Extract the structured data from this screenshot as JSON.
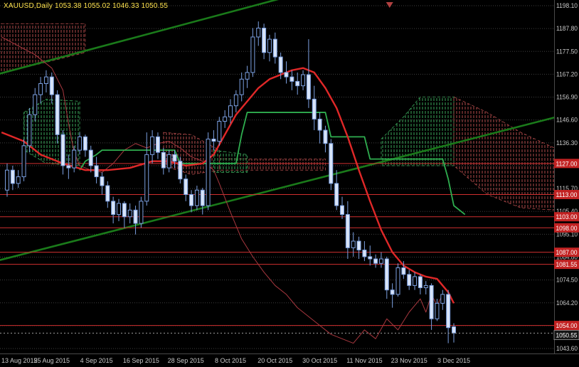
{
  "header": {
    "title": "XAUUSD,Daily 1053.38 1055.02 1046.33 1050.55"
  },
  "chart_data": {
    "type": "candlestick",
    "symbol": "XAUUSD",
    "timeframe": "Daily",
    "ohlc_readout": {
      "open": "1053.38",
      "high": "1055.02",
      "low": "1046.33",
      "close": "1050.55"
    },
    "y_axis": [
      1198.1,
      1187.8,
      1177.5,
      1167.2,
      1156.9,
      1146.6,
      1136.3,
      1126.0,
      1115.7,
      1105.4,
      1095.1,
      1084.8,
      1074.5,
      1064.2,
      1053.9,
      1043.6
    ],
    "x_axis": [
      {
        "label": "13 Aug 2015",
        "bar": 0
      },
      {
        "label": "25 Aug 2015",
        "bar": 8
      },
      {
        "label": "4 Sep 2015",
        "bar": 16
      },
      {
        "label": "16 Sep 2015",
        "bar": 24
      },
      {
        "label": "28 Sep 2015",
        "bar": 32
      },
      {
        "label": "8 Oct 2015",
        "bar": 40
      },
      {
        "label": "20 Oct 2015",
        "bar": 48
      },
      {
        "label": "30 Oct 2015",
        "bar": 56
      },
      {
        "label": "11 Nov 2015",
        "bar": 64
      },
      {
        "label": "23 Nov 2015",
        "bar": 72
      },
      {
        "label": "3 Dec 2015",
        "bar": 80
      }
    ],
    "candles": [
      [
        1115,
        1127,
        1112,
        1124
      ],
      [
        1124,
        1126,
        1115,
        1118
      ],
      [
        1118,
        1124,
        1116,
        1121
      ],
      [
        1121,
        1138,
        1119,
        1135
      ],
      [
        1135,
        1152,
        1132,
        1149
      ],
      [
        1149,
        1161,
        1146,
        1158
      ],
      [
        1158,
        1166,
        1154,
        1163
      ],
      [
        1163,
        1169,
        1159,
        1166
      ],
      [
        1166,
        1168,
        1154,
        1158
      ],
      [
        1158,
        1160,
        1136,
        1140
      ],
      [
        1140,
        1142,
        1122,
        1126
      ],
      [
        1126,
        1131,
        1120,
        1125
      ],
      [
        1125,
        1135,
        1123,
        1133
      ],
      [
        1133,
        1141,
        1131,
        1139
      ],
      [
        1139,
        1140,
        1130,
        1133
      ],
      [
        1133,
        1135,
        1123,
        1126
      ],
      [
        1126,
        1130,
        1118,
        1121
      ],
      [
        1121,
        1123,
        1113,
        1117
      ],
      [
        1117,
        1119,
        1107,
        1110
      ],
      [
        1110,
        1112,
        1100,
        1104
      ],
      [
        1104,
        1111,
        1101,
        1109
      ],
      [
        1109,
        1110,
        1098,
        1103
      ],
      [
        1103,
        1109,
        1100,
        1106
      ],
      [
        1106,
        1108,
        1095,
        1100
      ],
      [
        1100,
        1112,
        1098,
        1110
      ],
      [
        1110,
        1141,
        1108,
        1131
      ],
      [
        1131,
        1142,
        1127,
        1139
      ],
      [
        1139,
        1141,
        1129,
        1132
      ],
      [
        1132,
        1134,
        1122,
        1125
      ],
      [
        1125,
        1133,
        1123,
        1131
      ],
      [
        1131,
        1133,
        1125,
        1128
      ],
      [
        1128,
        1130,
        1118,
        1120
      ],
      [
        1120,
        1122,
        1110,
        1113
      ],
      [
        1113,
        1115,
        1105,
        1108
      ],
      [
        1108,
        1117,
        1106,
        1115
      ],
      [
        1115,
        1116,
        1104,
        1108
      ],
      [
        1108,
        1141,
        1106,
        1138
      ],
      [
        1138,
        1142,
        1133,
        1137
      ],
      [
        1137,
        1148,
        1135,
        1146
      ],
      [
        1146,
        1151,
        1143,
        1148
      ],
      [
        1148,
        1156,
        1145,
        1153
      ],
      [
        1153,
        1160,
        1150,
        1158
      ],
      [
        1158,
        1168,
        1155,
        1165
      ],
      [
        1165,
        1171,
        1161,
        1168
      ],
      [
        1168,
        1188,
        1166,
        1184
      ],
      [
        1184,
        1191,
        1180,
        1188
      ],
      [
        1188,
        1190,
        1174,
        1177
      ],
      [
        1177,
        1185,
        1173,
        1183
      ],
      [
        1183,
        1186,
        1172,
        1175
      ],
      [
        1175,
        1177,
        1165,
        1168
      ],
      [
        1168,
        1173,
        1163,
        1166
      ],
      [
        1166,
        1169,
        1160,
        1164
      ],
      [
        1164,
        1168,
        1158,
        1162
      ],
      [
        1162,
        1169,
        1160,
        1167
      ],
      [
        1167,
        1183,
        1152,
        1156
      ],
      [
        1156,
        1162,
        1142,
        1147
      ],
      [
        1147,
        1150,
        1136,
        1142
      ],
      [
        1142,
        1144,
        1132,
        1136
      ],
      [
        1136,
        1138,
        1115,
        1118
      ],
      [
        1118,
        1124,
        1106,
        1108
      ],
      [
        1108,
        1112,
        1102,
        1104
      ],
      [
        1104,
        1110,
        1084,
        1089
      ],
      [
        1089,
        1096,
        1085,
        1092
      ],
      [
        1092,
        1094,
        1084,
        1088
      ],
      [
        1088,
        1092,
        1083,
        1085
      ],
      [
        1085,
        1090,
        1081,
        1084
      ],
      [
        1084,
        1086,
        1080,
        1082
      ],
      [
        1082,
        1087,
        1080,
        1084
      ],
      [
        1084,
        1085,
        1066,
        1070
      ],
      [
        1070,
        1073,
        1062,
        1068
      ],
      [
        1068,
        1082,
        1067,
        1080
      ],
      [
        1080,
        1083,
        1075,
        1077
      ],
      [
        1077,
        1079,
        1070,
        1072
      ],
      [
        1072,
        1078,
        1070,
        1076
      ],
      [
        1076,
        1077,
        1068,
        1071
      ],
      [
        1071,
        1074,
        1068,
        1072
      ],
      [
        1072,
        1073,
        1052,
        1057
      ],
      [
        1057,
        1066,
        1056,
        1064
      ],
      [
        1064,
        1070,
        1061,
        1068
      ],
      [
        1068,
        1070,
        1046,
        1053
      ],
      [
        1053.4,
        1055,
        1046.3,
        1050.6
      ]
    ],
    "hlines": [
      {
        "price": 1127.0,
        "label": "1127.00"
      },
      {
        "price": 1113.0,
        "label": "1113.00"
      },
      {
        "price": 1103.0,
        "label": "1103.00"
      },
      {
        "price": 1098.0,
        "label": "1098.00"
      },
      {
        "price": 1087.0,
        "label": "1087.00"
      },
      {
        "price": 1081.55,
        "label": "1081.55"
      },
      {
        "price": 1054.0,
        "label": "1054.00"
      }
    ],
    "current_price": {
      "price": 1050.55,
      "label": "1050.55"
    },
    "lines": [
      {
        "name": "lagging-line-maroon",
        "color": "#a8383f",
        "width": 1,
        "points": [
          [
            -1,
            1184
          ],
          [
            2,
            1180
          ],
          [
            5,
            1176
          ],
          [
            8,
            1170
          ],
          [
            10,
            1160
          ],
          [
            11,
            1145
          ],
          [
            12,
            1132
          ],
          [
            13,
            1126
          ],
          [
            15,
            1124
          ],
          [
            17,
            1123
          ],
          [
            19,
            1127
          ],
          [
            21,
            1133
          ],
          [
            23,
            1136
          ],
          [
            25,
            1134
          ],
          [
            27,
            1136
          ],
          [
            29,
            1137
          ],
          [
            31,
            1134
          ],
          [
            33,
            1130
          ],
          [
            35,
            1128
          ],
          [
            37,
            1124
          ],
          [
            38,
            1118
          ],
          [
            40,
            1105
          ],
          [
            42,
            1093
          ],
          [
            44,
            1085
          ],
          [
            46,
            1078
          ],
          [
            48,
            1072
          ],
          [
            50,
            1068
          ],
          [
            52,
            1062
          ],
          [
            54,
            1058
          ],
          [
            56,
            1054
          ],
          [
            58,
            1050
          ],
          [
            60,
            1048
          ],
          [
            62,
            1046
          ],
          [
            64,
            1052
          ],
          [
            66,
            1048
          ],
          [
            68,
            1057
          ],
          [
            70,
            1052
          ],
          [
            72,
            1060
          ],
          [
            74,
            1066
          ],
          [
            75,
            1060
          ],
          [
            76,
            1068
          ],
          [
            77,
            1063
          ],
          [
            78,
            1068
          ]
        ]
      },
      {
        "name": "kijun-line-green",
        "color": "#2fae4f",
        "width": 1.8,
        "points": [
          [
            13,
            1124
          ],
          [
            14,
            1128
          ],
          [
            16,
            1131
          ],
          [
            17,
            1133
          ],
          [
            30,
            1133
          ],
          [
            31,
            1127
          ],
          [
            41,
            1127
          ],
          [
            42,
            1140
          ],
          [
            43,
            1150
          ],
          [
            57,
            1150
          ],
          [
            58,
            1139
          ],
          [
            64,
            1139
          ],
          [
            65,
            1129
          ],
          [
            78,
            1129
          ],
          [
            79,
            1120
          ],
          [
            80,
            1108
          ],
          [
            82,
            1104
          ]
        ]
      },
      {
        "name": "ma-line-red",
        "color": "#e02828",
        "width": 2.4,
        "points": [
          [
            -1,
            1141
          ],
          [
            3,
            1137
          ],
          [
            6,
            1131
          ],
          [
            10,
            1127
          ],
          [
            14,
            1124
          ],
          [
            18,
            1124
          ],
          [
            22,
            1125
          ],
          [
            26,
            1128
          ],
          [
            29,
            1128
          ],
          [
            32,
            1126
          ],
          [
            35,
            1127
          ],
          [
            37,
            1131
          ],
          [
            39,
            1140
          ],
          [
            41,
            1149
          ],
          [
            43,
            1155
          ],
          [
            45,
            1161
          ],
          [
            47,
            1165
          ],
          [
            49,
            1167
          ],
          [
            51,
            1169
          ],
          [
            53,
            1170
          ],
          [
            55,
            1168
          ],
          [
            57,
            1161
          ],
          [
            59,
            1152
          ],
          [
            61,
            1139
          ],
          [
            63,
            1124
          ],
          [
            65,
            1110
          ],
          [
            67,
            1097
          ],
          [
            69,
            1087
          ],
          [
            71,
            1081
          ],
          [
            73,
            1078
          ],
          [
            75,
            1076
          ],
          [
            77,
            1075
          ],
          [
            78,
            1072
          ],
          [
            79,
            1069
          ],
          [
            80,
            1064
          ]
        ]
      }
    ],
    "trendlines": [
      {
        "name": "trendline-upper",
        "points": [
          [
            -2,
            1167
          ],
          [
            50,
            1202
          ]
        ]
      },
      {
        "name": "trendline-lower",
        "points": [
          [
            -2,
            1083
          ],
          [
            100,
            1149
          ]
        ]
      }
    ],
    "clouds": [
      {
        "color": "red",
        "points": [
          [
            -2,
            1190
          ],
          [
            14,
            1190
          ],
          [
            14,
            1177
          ],
          [
            -2,
            1167
          ]
        ]
      },
      {
        "color": "green",
        "points": [
          [
            3,
            1150
          ],
          [
            7,
            1156
          ],
          [
            13,
            1155
          ],
          [
            13,
            1126
          ],
          [
            7,
            1127
          ],
          [
            3,
            1133
          ]
        ]
      },
      {
        "color": "red",
        "points": [
          [
            28,
            1141
          ],
          [
            33,
            1140
          ],
          [
            38,
            1133
          ],
          [
            38,
            1124
          ],
          [
            33,
            1122
          ],
          [
            28,
            1126
          ]
        ]
      },
      {
        "color": "red",
        "points": [
          [
            38,
            1129
          ],
          [
            57,
            1129
          ],
          [
            57,
            1124
          ],
          [
            38,
            1124
          ]
        ]
      },
      {
        "color": "green",
        "points": [
          [
            37,
            1133
          ],
          [
            43,
            1131
          ],
          [
            43,
            1123
          ],
          [
            37,
            1123
          ]
        ]
      },
      {
        "color": "green",
        "points": [
          [
            67,
            1138
          ],
          [
            71,
            1148
          ],
          [
            74,
            1157
          ],
          [
            80,
            1157
          ],
          [
            80,
            1126
          ],
          [
            67,
            1126
          ]
        ]
      },
      {
        "color": "red",
        "points": [
          [
            80,
            1157
          ],
          [
            86,
            1150
          ],
          [
            92,
            1141
          ],
          [
            98,
            1134
          ],
          [
            98,
            1106
          ],
          [
            92,
            1107
          ],
          [
            86,
            1113
          ],
          [
            80,
            1126
          ]
        ]
      }
    ],
    "shift_marker": {
      "x_bar": 68.5
    },
    "colors": {
      "background": "#000000",
      "grid": "#3f3f3f",
      "axis_text": "#c9c9c9",
      "title_text": "#ffe34d",
      "candle_outline": "#7b9fe0",
      "candle_up_fill": "#000000",
      "candle_down_fill": "#d8e4f8",
      "sr_line": "#cf2f2f",
      "trendline": "#1a7a1a",
      "cloud_red": "#b14a4a",
      "cloud_green": "#3aa65a",
      "badge_bg": "#c22222",
      "badge_text": "#ffffff",
      "current_badge_bg": "#141414"
    }
  }
}
